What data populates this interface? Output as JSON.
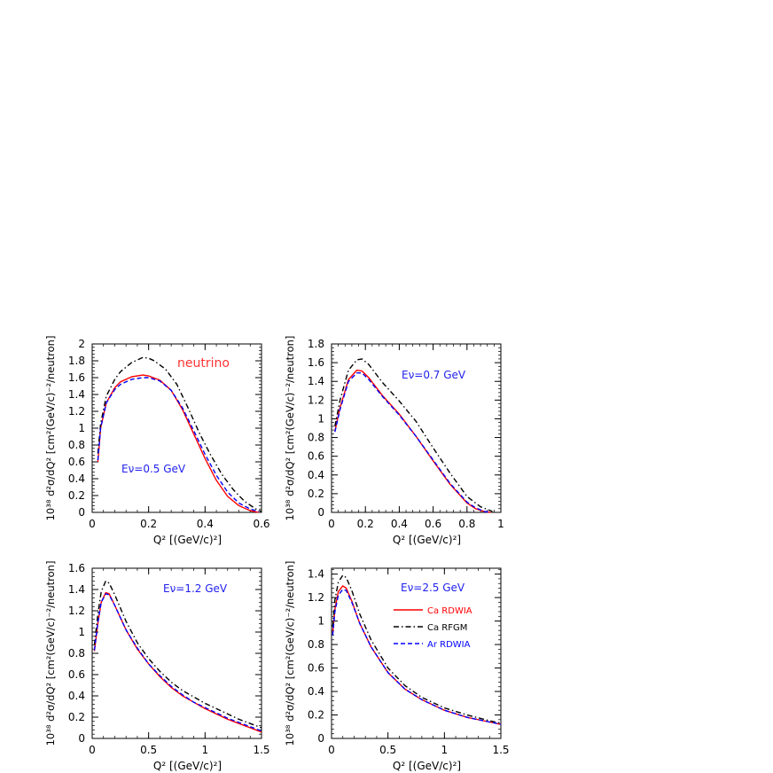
{
  "chart_data": [
    {
      "type": "line",
      "xlabel": "Q² [(GeV/c)²]",
      "ylabel": "10³⁸ d²σ/dQ² [cm²(GeV/c)⁻²/neutron]",
      "xlim": [
        0,
        0.6
      ],
      "ylim": [
        0,
        2.0
      ],
      "xticks": [
        "0",
        "0.2",
        "0.4",
        "0.6"
      ],
      "yticks": [
        "0",
        "0.2",
        "0.4",
        "0.6",
        "0.8",
        "1",
        "1.2",
        "1.4",
        "1.6",
        "1.8",
        "2"
      ],
      "annotations": [
        "neutrino",
        "Eν=0.5 GeV"
      ],
      "series": [
        {
          "name": "Ca RDWIA",
          "color": "#ff0000",
          "dash": "solid",
          "x": [
            0.02,
            0.03,
            0.05,
            0.08,
            0.1,
            0.14,
            0.18,
            0.2,
            0.24,
            0.28,
            0.32,
            0.36,
            0.4,
            0.44,
            0.48,
            0.52,
            0.56,
            0.59
          ],
          "y": [
            0.6,
            1.0,
            1.3,
            1.48,
            1.55,
            1.61,
            1.63,
            1.62,
            1.57,
            1.45,
            1.22,
            0.93,
            0.64,
            0.38,
            0.19,
            0.08,
            0.02,
            0.0
          ]
        },
        {
          "name": "Ca RFGM",
          "color": "#000000",
          "dash": "dashdot",
          "x": [
            0.02,
            0.03,
            0.05,
            0.08,
            0.1,
            0.14,
            0.18,
            0.2,
            0.22,
            0.26,
            0.3,
            0.34,
            0.38,
            0.42,
            0.46,
            0.5,
            0.54,
            0.58,
            0.6
          ],
          "y": [
            0.7,
            1.05,
            1.38,
            1.58,
            1.67,
            1.78,
            1.84,
            1.83,
            1.8,
            1.7,
            1.52,
            1.24,
            0.94,
            0.68,
            0.45,
            0.27,
            0.13,
            0.04,
            0.01
          ]
        },
        {
          "name": "Ar RDWIA",
          "color": "#0000ff",
          "dash": "dashed",
          "x": [
            0.02,
            0.03,
            0.05,
            0.08,
            0.1,
            0.14,
            0.18,
            0.2,
            0.24,
            0.28,
            0.32,
            0.36,
            0.4,
            0.44,
            0.48,
            0.52,
            0.56,
            0.59
          ],
          "y": [
            0.62,
            1.0,
            1.3,
            1.46,
            1.52,
            1.58,
            1.6,
            1.6,
            1.56,
            1.45,
            1.24,
            0.97,
            0.69,
            0.44,
            0.24,
            0.11,
            0.04,
            0.01
          ]
        }
      ]
    },
    {
      "type": "line",
      "xlabel": "Q² [(GeV/c)²]",
      "ylabel": "10³⁸ d²σ/dQ² [cm²(GeV/c)⁻²/neutron]",
      "xlim": [
        0,
        1.0
      ],
      "ylim": [
        0,
        1.8
      ],
      "xticks": [
        "0",
        "0.2",
        "0.4",
        "0.6",
        "0.8",
        "1"
      ],
      "yticks": [
        "0",
        "0.2",
        "0.4",
        "0.6",
        "0.8",
        "1",
        "1.2",
        "1.4",
        "1.6",
        "1.8"
      ],
      "annotations": [
        "Eν=0.7 GeV"
      ],
      "series": [
        {
          "name": "Ca RDWIA",
          "color": "#ff0000",
          "dash": "solid",
          "x": [
            0.02,
            0.05,
            0.1,
            0.15,
            0.18,
            0.22,
            0.3,
            0.4,
            0.5,
            0.6,
            0.7,
            0.8,
            0.85,
            0.9,
            0.94
          ],
          "y": [
            0.87,
            1.12,
            1.42,
            1.52,
            1.51,
            1.44,
            1.25,
            1.05,
            0.81,
            0.55,
            0.3,
            0.1,
            0.04,
            0.01,
            0.0
          ]
        },
        {
          "name": "Ca RFGM",
          "color": "#000000",
          "dash": "dashdot",
          "x": [
            0.02,
            0.05,
            0.1,
            0.15,
            0.18,
            0.22,
            0.3,
            0.4,
            0.5,
            0.6,
            0.7,
            0.8,
            0.88,
            0.95
          ],
          "y": [
            0.92,
            1.2,
            1.52,
            1.63,
            1.64,
            1.58,
            1.39,
            1.19,
            0.97,
            0.69,
            0.42,
            0.17,
            0.06,
            0.01
          ]
        },
        {
          "name": "Ar RDWIA",
          "color": "#0000ff",
          "dash": "dashed",
          "x": [
            0.02,
            0.05,
            0.1,
            0.15,
            0.18,
            0.22,
            0.3,
            0.4,
            0.5,
            0.6,
            0.7,
            0.8,
            0.85,
            0.9,
            0.94
          ],
          "y": [
            0.86,
            1.1,
            1.4,
            1.49,
            1.49,
            1.42,
            1.24,
            1.04,
            0.81,
            0.56,
            0.31,
            0.11,
            0.05,
            0.01,
            0.0
          ]
        }
      ]
    },
    {
      "type": "line",
      "xlabel": "Q² [(GeV/c)²]",
      "ylabel": "10³⁸ d²σ/dQ² [cm²(GeV/c)⁻²/neutron]",
      "xlim": [
        0,
        1.5
      ],
      "ylim": [
        0,
        1.6
      ],
      "xticks": [
        "0",
        "0.5",
        "1",
        "1.5"
      ],
      "yticks": [
        "0",
        "0.2",
        "0.4",
        "0.6",
        "0.8",
        "1",
        "1.2",
        "1.4",
        "1.6"
      ],
      "annotations": [
        "Eν=1.2 GeV"
      ],
      "series": [
        {
          "name": "Ca RDWIA",
          "color": "#ff0000",
          "dash": "solid",
          "x": [
            0.02,
            0.05,
            0.08,
            0.12,
            0.15,
            0.2,
            0.3,
            0.4,
            0.5,
            0.6,
            0.7,
            0.8,
            0.9,
            1.0,
            1.1,
            1.2,
            1.3,
            1.4,
            1.5
          ],
          "y": [
            0.82,
            1.08,
            1.28,
            1.37,
            1.36,
            1.25,
            1.02,
            0.84,
            0.7,
            0.58,
            0.48,
            0.4,
            0.34,
            0.28,
            0.23,
            0.18,
            0.14,
            0.1,
            0.06
          ]
        },
        {
          "name": "Ca RFGM",
          "color": "#000000",
          "dash": "dashdot",
          "x": [
            0.02,
            0.05,
            0.08,
            0.12,
            0.15,
            0.2,
            0.3,
            0.4,
            0.5,
            0.6,
            0.7,
            0.8,
            0.9,
            1.0,
            1.1,
            1.2,
            1.3,
            1.4,
            1.5
          ],
          "y": [
            0.88,
            1.17,
            1.38,
            1.48,
            1.46,
            1.35,
            1.1,
            0.9,
            0.75,
            0.63,
            0.53,
            0.45,
            0.39,
            0.33,
            0.28,
            0.23,
            0.18,
            0.14,
            0.1
          ]
        },
        {
          "name": "Ar RDWIA",
          "color": "#0000ff",
          "dash": "dashed",
          "x": [
            0.02,
            0.05,
            0.08,
            0.12,
            0.15,
            0.2,
            0.3,
            0.4,
            0.5,
            0.6,
            0.7,
            0.8,
            0.9,
            1.0,
            1.1,
            1.2,
            1.3,
            1.4,
            1.5
          ],
          "y": [
            0.83,
            1.09,
            1.28,
            1.36,
            1.35,
            1.25,
            1.02,
            0.85,
            0.7,
            0.59,
            0.49,
            0.41,
            0.34,
            0.29,
            0.24,
            0.19,
            0.15,
            0.11,
            0.07
          ]
        }
      ]
    },
    {
      "type": "line",
      "xlabel": "Q² [(GeV/c)²]",
      "ylabel": "10³⁸ d²σ/dQ² [cm²(GeV/c)⁻²/neutron]",
      "xlim": [
        0,
        1.5
      ],
      "ylim": [
        0,
        1.45
      ],
      "xticks": [
        "0",
        "0.5",
        "1",
        "1.5"
      ],
      "yticks": [
        "0",
        "0.2",
        "0.4",
        "0.6",
        "0.8",
        "1",
        "1.2",
        "1.4"
      ],
      "annotations": [
        "Eν=2.5 GeV"
      ],
      "legend_placement": "right",
      "legend": [
        {
          "label": "Ca RDWIA",
          "color": "#ff0000",
          "dash": "solid"
        },
        {
          "label": "Ca RFGM",
          "color": "#000000",
          "dash": "dashdot"
        },
        {
          "label": "Ar RDWIA",
          "color": "#0000ff",
          "dash": "dashed"
        }
      ],
      "series": [
        {
          "name": "Ca RDWIA",
          "color": "#ff0000",
          "dash": "solid",
          "x": [
            0.01,
            0.03,
            0.06,
            0.1,
            0.13,
            0.18,
            0.25,
            0.35,
            0.5,
            0.65,
            0.8,
            1.0,
            1.2,
            1.4,
            1.5
          ],
          "y": [
            0.9,
            1.1,
            1.25,
            1.3,
            1.28,
            1.17,
            0.98,
            0.78,
            0.56,
            0.42,
            0.33,
            0.24,
            0.18,
            0.14,
            0.12
          ]
        },
        {
          "name": "Ca RFGM",
          "color": "#000000",
          "dash": "dashdot",
          "x": [
            0.01,
            0.03,
            0.06,
            0.1,
            0.13,
            0.18,
            0.25,
            0.35,
            0.5,
            0.65,
            0.8,
            1.0,
            1.2,
            1.4,
            1.5
          ],
          "y": [
            0.95,
            1.18,
            1.33,
            1.39,
            1.37,
            1.26,
            1.06,
            0.84,
            0.6,
            0.45,
            0.35,
            0.26,
            0.2,
            0.15,
            0.13
          ]
        },
        {
          "name": "Ar RDWIA",
          "color": "#0000ff",
          "dash": "dashed",
          "x": [
            0.01,
            0.03,
            0.06,
            0.1,
            0.13,
            0.18,
            0.25,
            0.35,
            0.5,
            0.65,
            0.8,
            1.0,
            1.2,
            1.4,
            1.5
          ],
          "y": [
            0.88,
            1.08,
            1.22,
            1.27,
            1.26,
            1.16,
            0.98,
            0.78,
            0.56,
            0.42,
            0.33,
            0.24,
            0.18,
            0.14,
            0.12
          ]
        }
      ]
    }
  ]
}
